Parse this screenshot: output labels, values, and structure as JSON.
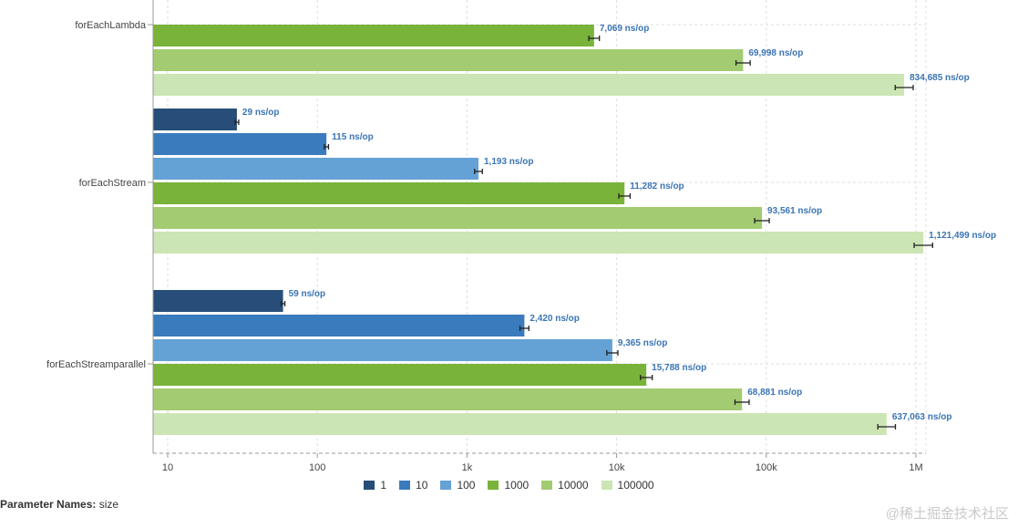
{
  "chart_data": {
    "type": "bar",
    "orientation": "horizontal",
    "x_scale": "log",
    "xlim": [
      10,
      1000000
    ],
    "x_ticks": [
      "10",
      "100",
      "1k",
      "10k",
      "100k",
      "1M"
    ],
    "categories": [
      "forEachLambda",
      "forEachStream",
      "forEachStreamparallel"
    ],
    "category_labels": [
      "forEachLambda",
      "forEachStream",
      "forEachStreamparallel"
    ],
    "series": [
      {
        "name": "1",
        "color": "#264e78",
        "values": [
          null,
          29,
          59
        ]
      },
      {
        "name": "10",
        "color": "#3a7bbd",
        "values": [
          null,
          115,
          2420
        ]
      },
      {
        "name": "100",
        "color": "#64a2d6",
        "values": [
          null,
          1193,
          9365
        ]
      },
      {
        "name": "1000",
        "color": "#7ab33a",
        "values": [
          7069,
          11282,
          15788
        ]
      },
      {
        "name": "10000",
        "color": "#a2cb72",
        "values": [
          69998,
          93561,
          68881
        ]
      },
      {
        "name": "100000",
        "color": "#cce5b4",
        "values": [
          834685,
          1121499,
          637063
        ]
      }
    ],
    "value_labels": [
      [
        null,
        "29 ns/op",
        "59 ns/op"
      ],
      [
        null,
        "115 ns/op",
        "2,420 ns/op"
      ],
      [
        null,
        "1,193 ns/op",
        "9,365 ns/op"
      ],
      [
        "7,069 ns/op",
        "11,282 ns/op",
        "15,788 ns/op"
      ],
      [
        "69,998 ns/op",
        "93,561 ns/op",
        "68,881 ns/op"
      ],
      [
        "834,685 ns/op",
        "1,121,499 ns/op",
        "637,063 ns/op"
      ]
    ],
    "legend_position": "bottom",
    "grid": true
  },
  "parameter_names": {
    "label": "Parameter Names:",
    "value": "size"
  },
  "watermark": "@稀土掘金技术社区"
}
